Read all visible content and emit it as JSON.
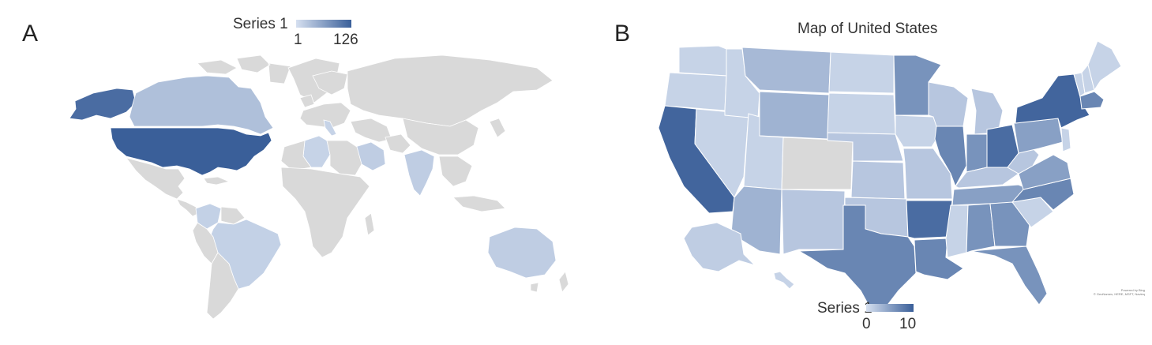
{
  "panel_a": {
    "letter": "A",
    "legend": {
      "title": "Series 1",
      "min": "1",
      "max": "126",
      "color_low": "#d6e0f0",
      "color_high": "#3a5f99"
    },
    "no_data_color": "#d9d9d9",
    "regions": [
      {
        "name": "United States",
        "level": 1.0
      },
      {
        "name": "Alaska",
        "level": 0.9
      },
      {
        "name": "Canada",
        "level": 0.25
      },
      {
        "name": "Mexico",
        "level": 0.0
      },
      {
        "name": "Brazil",
        "level": 0.12
      },
      {
        "name": "Colombia",
        "level": 0.12
      },
      {
        "name": "Algeria",
        "level": 0.1
      },
      {
        "name": "Saudi Arabia",
        "level": 0.15
      },
      {
        "name": "India",
        "level": 0.15
      },
      {
        "name": "Australia",
        "level": 0.15
      },
      {
        "name": "Italy",
        "level": 0.1
      }
    ]
  },
  "panel_b": {
    "letter": "B",
    "title": "Map of United States",
    "legend": {
      "title": "Series 1",
      "min": "0",
      "max": "10",
      "color_low": "#d6e0f0",
      "color_high": "#3a5f99"
    },
    "no_data_color": "#d9d9d9",
    "credit_line1": "Powered by Bing",
    "credit_line2": "© GeoNames, HERE, MSFT, Navteq",
    "states": [
      {
        "name": "Washington",
        "level": 0.1
      },
      {
        "name": "Oregon",
        "level": 0.1
      },
      {
        "name": "California",
        "level": 0.95
      },
      {
        "name": "Nevada",
        "level": 0.1
      },
      {
        "name": "Idaho",
        "level": 0.1
      },
      {
        "name": "Montana",
        "level": 0.3
      },
      {
        "name": "Wyoming",
        "level": 0.35
      },
      {
        "name": "Utah",
        "level": 0.1
      },
      {
        "name": "Colorado",
        "level": null
      },
      {
        "name": "Arizona",
        "level": 0.35
      },
      {
        "name": "New Mexico",
        "level": 0.2
      },
      {
        "name": "North Dakota",
        "level": 0.1
      },
      {
        "name": "South Dakota",
        "level": 0.1
      },
      {
        "name": "Nebraska",
        "level": 0.2
      },
      {
        "name": "Kansas",
        "level": 0.2
      },
      {
        "name": "Oklahoma",
        "level": 0.2
      },
      {
        "name": "Texas",
        "level": 0.7
      },
      {
        "name": "Minnesota",
        "level": 0.6
      },
      {
        "name": "Iowa",
        "level": 0.1
      },
      {
        "name": "Missouri",
        "level": 0.2
      },
      {
        "name": "Arkansas",
        "level": 0.9
      },
      {
        "name": "Louisiana",
        "level": 0.7
      },
      {
        "name": "Wisconsin",
        "level": 0.2
      },
      {
        "name": "Illinois",
        "level": 0.7
      },
      {
        "name": "Michigan",
        "level": 0.2
      },
      {
        "name": "Indiana",
        "level": 0.6
      },
      {
        "name": "Ohio",
        "level": 0.9
      },
      {
        "name": "Kentucky",
        "level": 0.2
      },
      {
        "name": "Tennessee",
        "level": 0.5
      },
      {
        "name": "Mississippi",
        "level": 0.1
      },
      {
        "name": "Alabama",
        "level": 0.6
      },
      {
        "name": "Georgia",
        "level": 0.6
      },
      {
        "name": "Florida",
        "level": 0.6
      },
      {
        "name": "South Carolina",
        "level": 0.1
      },
      {
        "name": "North Carolina",
        "level": 0.7
      },
      {
        "name": "Virginia",
        "level": 0.5
      },
      {
        "name": "West Virginia",
        "level": 0.2
      },
      {
        "name": "Pennsylvania",
        "level": 0.5
      },
      {
        "name": "New York",
        "level": 0.95
      },
      {
        "name": "Vermont",
        "level": 0.1
      },
      {
        "name": "New Hampshire",
        "level": 0.1
      },
      {
        "name": "Maine",
        "level": 0.1
      },
      {
        "name": "Massachusetts",
        "level": 0.7
      },
      {
        "name": "New Jersey",
        "level": 0.1
      },
      {
        "name": "Alaska",
        "level": 0.15
      },
      {
        "name": "Hawaii",
        "level": 0.1
      }
    ]
  }
}
